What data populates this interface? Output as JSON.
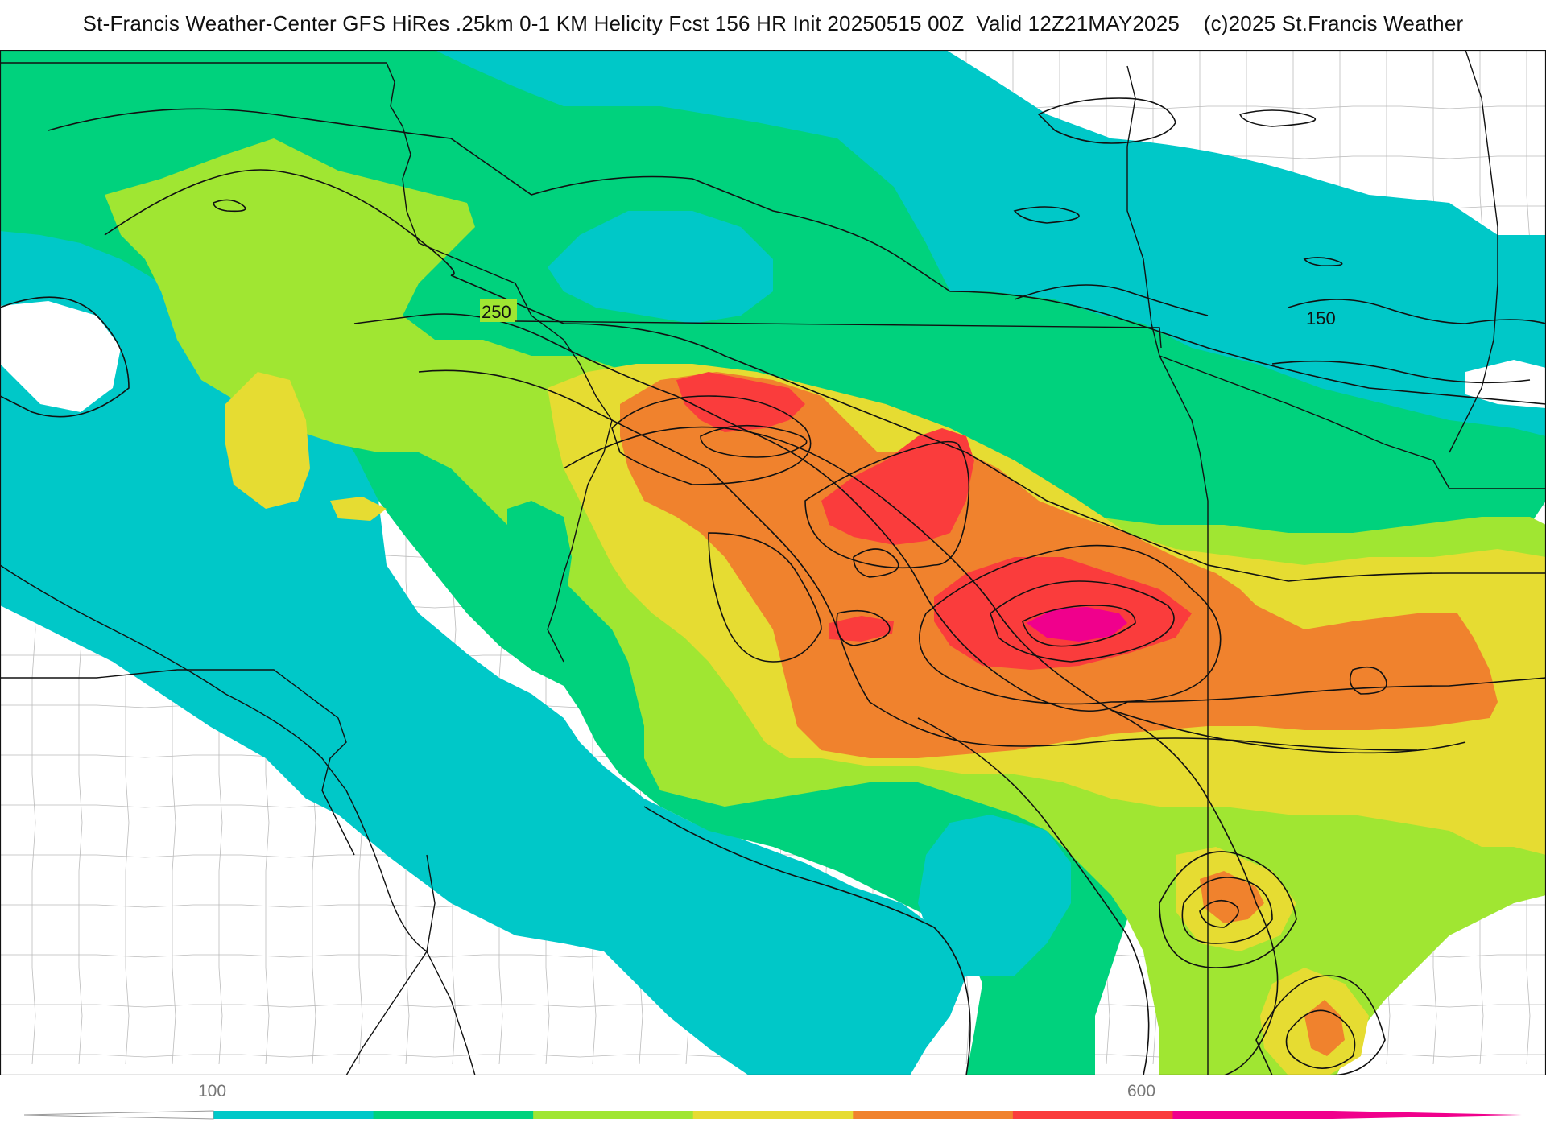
{
  "title": "St-Francis Weather-Center GFS HiRes .25km 0-1 KM Helicity Fcst 156 HR Init 20250515 00Z  Valid 12Z21MAY2025    (c)2025 St.Francis Weather",
  "contour_labels": [
    "250",
    "150"
  ],
  "colorbar": {
    "tick_labels": [
      "100",
      "600"
    ],
    "colors": [
      "#00c8c8",
      "#00d27d",
      "#a0e632",
      "#e6dc32",
      "#f0822d",
      "#fa3c3c",
      "#f0008c"
    ],
    "background_color": "#ffffff"
  },
  "map": {
    "fill_levels": [
      "#00c8c8",
      "#00d27d",
      "#a0e632",
      "#e6dc32",
      "#f0822d",
      "#fa3c3c",
      "#f0008c"
    ],
    "contour_color": "#111111",
    "border_color": "#111111",
    "county_line_color": "#bbbbbb"
  }
}
